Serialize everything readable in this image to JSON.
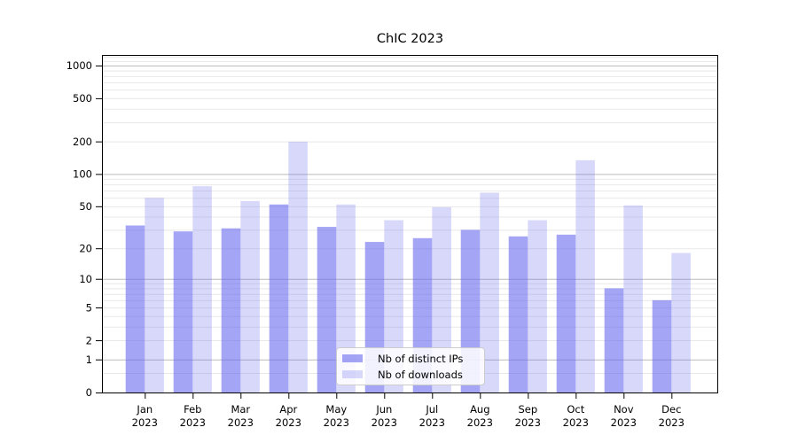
{
  "chart_data": {
    "type": "bar",
    "title": "ChIC 2023",
    "categories": [
      "Jan 2023",
      "Feb 2023",
      "Mar 2023",
      "Apr 2023",
      "May 2023",
      "Jun 2023",
      "Jul 2023",
      "Aug 2023",
      "Sep 2023",
      "Oct 2023",
      "Nov 2023",
      "Dec 2023"
    ],
    "series": [
      {
        "name": "Nb of distinct IPs",
        "color": "rgba(100,100,240,0.58)",
        "values": [
          33,
          29,
          31,
          52,
          32,
          23,
          25,
          30,
          26,
          27,
          8,
          6
        ]
      },
      {
        "name": "Nb of downloads",
        "color": "rgba(100,100,240,0.25)",
        "values": [
          60,
          77,
          56,
          199,
          52,
          37,
          49,
          67,
          37,
          134,
          51,
          18
        ]
      }
    ],
    "yscale": "log1p",
    "ylim": [
      0,
      1250
    ],
    "yticks": [
      1000,
      500,
      200,
      100,
      50,
      20,
      10,
      5,
      2,
      1,
      0
    ],
    "grid_major": [
      1,
      10,
      100,
      1000
    ],
    "grid_minor": [
      0.5,
      2,
      3,
      4,
      5,
      6,
      7,
      8,
      9,
      20,
      30,
      40,
      50,
      60,
      70,
      80,
      90,
      200,
      300,
      400,
      500,
      600,
      700,
      800,
      900,
      1100,
      1200
    ],
    "xlabel": "",
    "ylabel": "",
    "legend_position": "lower center"
  },
  "legend": {
    "items": [
      {
        "label": "Nb of distinct IPs",
        "swatch": "rgba(100,100,240,0.58)"
      },
      {
        "label": "Nb of downloads",
        "swatch": "rgba(100,100,240,0.25)"
      }
    ]
  },
  "colors": {
    "bar_base": "#6464f0",
    "grid_major": "#bbbbbb",
    "grid_minor": "#e8e8e8",
    "spine": "#000000",
    "tick_text": "#000000",
    "legend_border": "#cccccc"
  }
}
